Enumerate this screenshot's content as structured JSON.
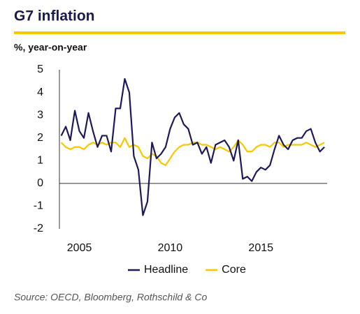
{
  "chart_data": {
    "type": "line",
    "title": "G7 inflation",
    "subtitle": "%, year-on-year",
    "source": "Source: OECD, Bloomberg, Rothschild & Co",
    "x": [
      2004,
      2004.25,
      2004.5,
      2004.75,
      2005,
      2005.25,
      2005.5,
      2005.75,
      2006,
      2006.25,
      2006.5,
      2006.75,
      2007,
      2007.25,
      2007.5,
      2007.75,
      2008,
      2008.25,
      2008.5,
      2008.75,
      2009,
      2009.25,
      2009.5,
      2009.75,
      2010,
      2010.25,
      2010.5,
      2010.75,
      2011,
      2011.25,
      2011.5,
      2011.75,
      2012,
      2012.25,
      2012.5,
      2012.75,
      2013,
      2013.25,
      2013.5,
      2013.75,
      2014,
      2014.25,
      2014.5,
      2014.75,
      2015,
      2015.25,
      2015.5,
      2015.75,
      2016,
      2016.25,
      2016.5,
      2016.75,
      2017,
      2017.25,
      2017.5,
      2017.75,
      2018,
      2018.25,
      2018.5
    ],
    "series": [
      {
        "name": "Headline",
        "color": "#1e1a5a",
        "values": [
          2.1,
          2.5,
          1.9,
          3.2,
          2.3,
          2.0,
          3.1,
          2.3,
          1.6,
          2.1,
          2.1,
          1.4,
          3.3,
          3.3,
          4.6,
          4.0,
          1.2,
          0.6,
          -1.4,
          -0.8,
          1.8,
          1.1,
          1.3,
          1.6,
          2.4,
          2.9,
          3.1,
          2.6,
          2.4,
          1.7,
          1.8,
          1.3,
          1.6,
          0.9,
          1.7,
          1.8,
          1.9,
          1.6,
          1.0,
          1.9,
          0.2,
          0.3,
          0.1,
          0.5,
          0.7,
          0.6,
          0.8,
          1.5,
          2.1,
          1.7,
          1.5,
          1.9,
          2.0,
          2.0,
          2.3,
          2.4,
          1.8,
          1.4,
          1.6
        ]
      },
      {
        "name": "Core",
        "color": "#f5c800",
        "values": [
          1.8,
          1.6,
          1.5,
          1.6,
          1.6,
          1.5,
          1.7,
          1.8,
          1.7,
          1.8,
          1.7,
          1.8,
          1.8,
          1.6,
          2.0,
          1.6,
          1.7,
          1.6,
          1.2,
          1.1,
          1.3,
          1.2,
          0.9,
          0.8,
          1.1,
          1.4,
          1.6,
          1.7,
          1.7,
          1.8,
          1.8,
          1.7,
          1.7,
          1.6,
          1.5,
          1.6,
          1.5,
          1.4,
          1.6,
          1.9,
          1.7,
          1.4,
          1.4,
          1.6,
          1.7,
          1.7,
          1.6,
          1.8,
          1.8,
          1.6,
          1.7,
          1.7,
          1.7,
          1.7,
          1.8,
          1.7,
          1.6,
          1.7,
          1.8
        ]
      }
    ],
    "xlim": [
      2003.9,
      2018.65
    ],
    "xticks": [
      2005,
      2010,
      2015
    ],
    "ylim": [
      -2,
      5
    ],
    "yticks": [
      -2,
      -1,
      0,
      1,
      2,
      3,
      4,
      5
    ],
    "legend": "bottom"
  }
}
